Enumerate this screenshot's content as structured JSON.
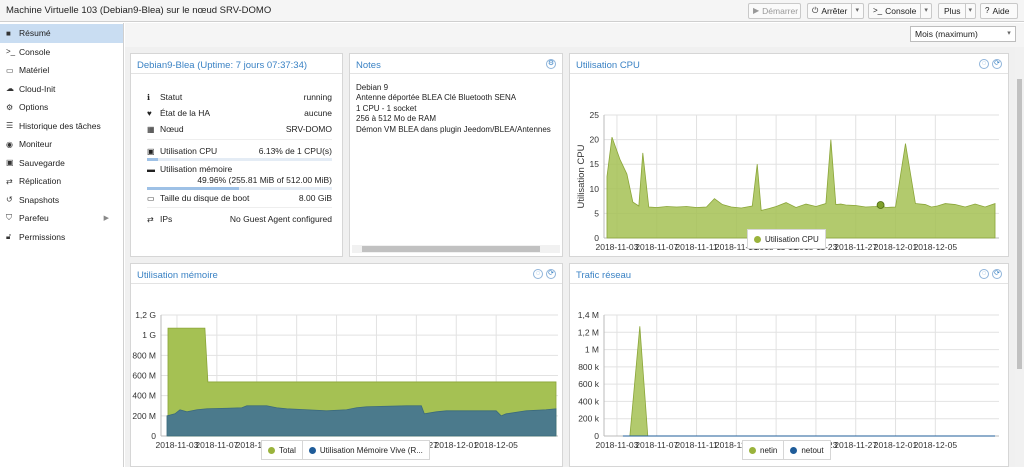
{
  "window": {
    "title": "Machine Virtuelle 103 (Debian9-Blea) sur le nœud SRV-DOMO"
  },
  "toolbar": {
    "start": "Démarrer",
    "stop": "Arrêter",
    "console": "Console",
    "more": "Plus",
    "help": "Aide"
  },
  "sidebar": {
    "items": [
      {
        "label": "Résumé",
        "icon": "book-icon"
      },
      {
        "label": "Console",
        "icon": "terminal-icon"
      },
      {
        "label": "Matériel",
        "icon": "desktop-icon"
      },
      {
        "label": "Cloud-Init",
        "icon": "cloud-icon"
      },
      {
        "label": "Options",
        "icon": "gear-icon"
      },
      {
        "label": "Historique des tâches",
        "icon": "list-icon"
      },
      {
        "label": "Moniteur",
        "icon": "eye-icon"
      },
      {
        "label": "Sauvegarde",
        "icon": "floppy-icon"
      },
      {
        "label": "Réplication",
        "icon": "retweet-icon"
      },
      {
        "label": "Snapshots",
        "icon": "history-icon"
      },
      {
        "label": "Parefeu",
        "icon": "shield-icon"
      },
      {
        "label": "Permissions",
        "icon": "unlock-icon"
      }
    ]
  },
  "timeframe": {
    "value": "Mois (maximum)"
  },
  "status": {
    "title": "Debian9-Blea (Uptime: 7 jours 07:37:34)",
    "rows": {
      "statut_label": "Statut",
      "statut": "running",
      "ha_label": "État de la HA",
      "ha": "aucune",
      "node_label": "Nœud",
      "node": "SRV-DOMO",
      "cpu_label": "Utilisation CPU",
      "cpu": "6.13% de 1 CPU(s)",
      "cpu_fraction": 0.0613,
      "mem_label": "Utilisation mémoire",
      "mem": "49.96% (255.81 MiB of 512.00 MiB)",
      "mem_fraction": 0.4996,
      "disk_label": "Taille du disque de boot",
      "disk": "8.00 GiB",
      "ips_label": "IPs",
      "ips": "No Guest Agent configured"
    }
  },
  "notes": {
    "title": "Notes",
    "lines": [
      "Debian 9",
      "Antenne déportée BLEA Clé Bluetooth SENA",
      "1 CPU - 1 socket",
      "256 à 512 Mo de RAM",
      "Démon VM BLEA dans plugin Jeedom/BLEA/Antennes"
    ]
  },
  "chart_data": [
    {
      "type": "area",
      "title": "Utilisation CPU",
      "ylabel": "Utilisation CPU",
      "ylim": [
        0,
        25
      ],
      "yticks": [
        "0",
        "5",
        "10",
        "15",
        "20",
        "25"
      ],
      "xticks": [
        "2018-11-03",
        "2018-11-07",
        "2018-11-11",
        "2018-11-15",
        "2018-11-19",
        "2018-11-23",
        "2018-11-27",
        "2018-12-01",
        "2018-12-05"
      ],
      "x": [
        0,
        0.5,
        1.3,
        2,
        2.6,
        3.2,
        3.6,
        4.2,
        5,
        6,
        7,
        8,
        9,
        10,
        10.8,
        11.6,
        12.5,
        13.5,
        14.6,
        15.1,
        15.5,
        16.3,
        17,
        18,
        19,
        20,
        21,
        22,
        22.5,
        23,
        23.5,
        24,
        25,
        26,
        27,
        27.5,
        28,
        29,
        30,
        31,
        32,
        32.6,
        33.2,
        34,
        35,
        36,
        37,
        38,
        39
      ],
      "x_start": "2018-11-02",
      "x_unit": "day",
      "series": [
        {
          "name": "Utilisation CPU",
          "color": "#9ab33c",
          "values": [
            12.5,
            20.5,
            16,
            13,
            7.3,
            6.5,
            17.3,
            6.3,
            6.2,
            6.4,
            6.3,
            6.4,
            6.2,
            6.3,
            8,
            6.8,
            6.3,
            6.1,
            6.5,
            15,
            5.6,
            6,
            6.4,
            7.2,
            6.2,
            6.9,
            6.4,
            7,
            20,
            6.8,
            6.9,
            6.7,
            6.6,
            6.3,
            6.4,
            6.7,
            6.2,
            6.3,
            19.2,
            7,
            6.8,
            6.3,
            6.5,
            7,
            6.8,
            6.3,
            6.9,
            6.3,
            7
          ]
        }
      ],
      "marker": {
        "x": 27.5,
        "y": 6.7
      },
      "legend": "bottom"
    },
    {
      "type": "area",
      "title": "Utilisation mémoire",
      "ylim": [
        0,
        1.2
      ],
      "yticks": [
        "0",
        "200 M",
        "400 M",
        "600 M",
        "800 M",
        "1 G",
        "1,2 G"
      ],
      "xticks": [
        "2018-11-03",
        "2018-11-07",
        "2018-11-11",
        "2018-11-15",
        "2018-11-19",
        "2018-11-23",
        "2018-11-27",
        "2018-12-01",
        "2018-12-05"
      ],
      "x_start": "2018-11-02",
      "x_unit": "day",
      "x": [
        0.1,
        0.9,
        1.1,
        3.8,
        4.1,
        39
      ],
      "series": [
        {
          "name": "Total",
          "color": "#a5c153",
          "values": [
            1.07,
            1.07,
            1.07,
            1.07,
            0.536,
            0.536
          ]
        },
        {
          "name": "Utilisation Mémoire Vive (R...",
          "color": "#4b7a8c",
          "values": [
            [
              0,
              0.2
            ],
            [
              0.8,
              0.22
            ],
            [
              1.3,
              0.26
            ],
            [
              2,
              0.24
            ],
            [
              3,
              0.26
            ],
            [
              4,
              0.27
            ],
            [
              6,
              0.275
            ],
            [
              7.5,
              0.28
            ],
            [
              8,
              0.3
            ],
            [
              10,
              0.3
            ],
            [
              11,
              0.28
            ],
            [
              12,
              0.27
            ],
            [
              14,
              0.26
            ],
            [
              16,
              0.25
            ],
            [
              18,
              0.26
            ],
            [
              19,
              0.28
            ],
            [
              20,
              0.29
            ],
            [
              24,
              0.3
            ],
            [
              25.5,
              0.3
            ],
            [
              25.8,
              0.22
            ],
            [
              27,
              0.24
            ],
            [
              28,
              0.25
            ],
            [
              31,
              0.25
            ],
            [
              33,
              0.25
            ],
            [
              33.5,
              0.2
            ],
            [
              34,
              0.22
            ],
            [
              36,
              0.25
            ],
            [
              38,
              0.26
            ],
            [
              39,
              0.27
            ]
          ]
        }
      ],
      "legend": "bottom"
    },
    {
      "type": "line",
      "title": "Trafic réseau",
      "ylim": [
        0,
        1.4
      ],
      "yticks": [
        "0",
        "200 k",
        "400 k",
        "600 k",
        "800 k",
        "1 M",
        "1,2 M",
        "1,4 M"
      ],
      "xticks": [
        "2018-11-03",
        "2018-11-07",
        "2018-11-11",
        "2018-11-15",
        "2018-11-19",
        "2018-11-23",
        "2018-11-27",
        "2018-12-01",
        "2018-12-05"
      ],
      "x_start": "2018-11-02",
      "x_unit": "day",
      "series": [
        {
          "name": "netin",
          "color": "#9ab33c",
          "values": [
            [
              1.6,
              0
            ],
            [
              2.3,
              0
            ],
            [
              3.3,
              1.27
            ],
            [
              4.1,
              0
            ],
            [
              39,
              0
            ]
          ]
        },
        {
          "name": "netout",
          "color": "#1f5c99",
          "values": [
            [
              1.6,
              0
            ],
            [
              39,
              0
            ]
          ]
        }
      ],
      "legend": "bottom"
    }
  ]
}
